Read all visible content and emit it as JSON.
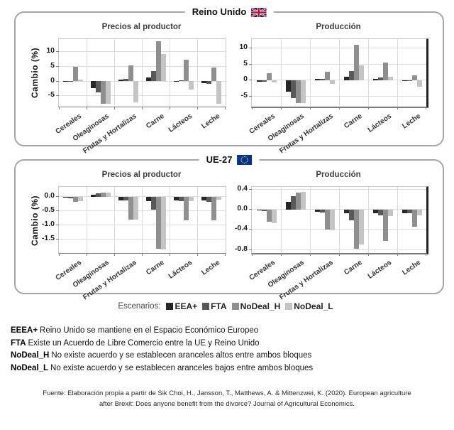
{
  "panels": [
    {
      "title": "Reino Unido",
      "flag": "uk"
    },
    {
      "title": "UE-27",
      "flag": "eu"
    }
  ],
  "legend": {
    "label": "Escenarios:",
    "entries": [
      {
        "name": "EEA+",
        "color": "#262626"
      },
      {
        "name": "FTA",
        "color": "#595959"
      },
      {
        "name": "NoDeal_H",
        "color": "#8f8f8f"
      },
      {
        "name": "NoDeal_L",
        "color": "#c4c4c4"
      }
    ]
  },
  "definitions": [
    {
      "term": "EEEA+",
      "text": "Reino Unido se mantiene en el Espacio Económico Europeo"
    },
    {
      "term": "FTA",
      "text": "Existe un Acuerdo de Libre Comercio entre la UE y Reino Unido"
    },
    {
      "term": "NoDeal_H",
      "text": "No existe acuerdo y se establecen aranceles altos entre ambos bloques"
    },
    {
      "term": "NoDeal_L",
      "text": "No existe acuerdo y se establecen aranceles bajos entre ambos bloques"
    }
  ],
  "source": {
    "line1": "Fuente: Elaboración propia a partir de Sik Choi, H., Jansson, T., Matthews, A. & Mittenzwei, K. (2020). European agriculture",
    "line2": "after Brexit: Does anyone benefit from the divorce? Journal of Agricultural Economics."
  },
  "chart_data": [
    {
      "id": "uk-precios",
      "type": "bar",
      "panel": "Reino Unido",
      "title": "Precios al productor",
      "ylabel": "Cambio (%)",
      "categories": [
        "Cereales",
        "Oleaginosas",
        "Frutas y Hortalizas",
        "Carne",
        "Lácteos",
        "Leche"
      ],
      "series": [
        {
          "name": "EEA+",
          "values": [
            -0.3,
            -2.5,
            0.4,
            1.2,
            -0.2,
            -0.7
          ]
        },
        {
          "name": "FTA",
          "values": [
            -0.3,
            -3.9,
            0.7,
            3.5,
            0.2,
            -0.9
          ]
        },
        {
          "name": "NoDeal_H",
          "values": [
            4.8,
            -7.8,
            5.3,
            13.5,
            7.2,
            4.6
          ]
        },
        {
          "name": "NoDeal_L",
          "values": [
            0.5,
            -7.8,
            -7.2,
            9.2,
            -2.8,
            -7.8
          ]
        }
      ],
      "ylim": [
        -8.7,
        14.3
      ],
      "yticks": [
        {
          "v": 10,
          "label": "10"
        },
        {
          "v": 5,
          "label": "5"
        },
        {
          "v": 0,
          "label": "0"
        },
        {
          "v": -5,
          "label": "-5"
        }
      ],
      "grid": true,
      "legend_position": "bottom-shared"
    },
    {
      "id": "uk-produccion",
      "type": "bar",
      "panel": "Reino Unido",
      "title": "Producción",
      "ylabel": "",
      "categories": [
        "Cereales",
        "Oleaginosas",
        "Frutas y Hortalizas",
        "Carne",
        "Lácteos",
        "Leche"
      ],
      "series": [
        {
          "name": "EEA+",
          "values": [
            -0.5,
            -3.5,
            0.3,
            1.0,
            0.4,
            -0.2
          ]
        },
        {
          "name": "FTA",
          "values": [
            -0.6,
            -5.5,
            0.4,
            2.7,
            0.8,
            -0.3
          ]
        },
        {
          "name": "NoDeal_H",
          "values": [
            2.2,
            -7.0,
            2.6,
            11.0,
            5.5,
            1.5
          ]
        },
        {
          "name": "NoDeal_L",
          "values": [
            -0.8,
            -7.2,
            -1.2,
            4.5,
            1.0,
            -2.0
          ]
        }
      ],
      "ylim": [
        -8.2,
        12.7
      ],
      "yticks": [
        {
          "v": 10,
          "label": "10"
        },
        {
          "v": 5,
          "label": "5"
        },
        {
          "v": 0,
          "label": "0"
        },
        {
          "v": -5,
          "label": "-5"
        }
      ],
      "grid": true,
      "legend_position": "bottom-shared"
    },
    {
      "id": "eu-precios",
      "type": "bar",
      "panel": "UE-27",
      "title": "Precios al productor",
      "ylabel": "Cambio (%)",
      "categories": [
        "Cereales",
        "Oleaginosas",
        "Frutas y Hortalizas",
        "Carne",
        "Lácteos",
        "Leche"
      ],
      "series": [
        {
          "name": "EEA+",
          "values": [
            -0.03,
            0.08,
            -0.12,
            -0.15,
            -0.13,
            -0.12
          ]
        },
        {
          "name": "FTA",
          "values": [
            -0.05,
            0.12,
            -0.14,
            -0.45,
            -0.16,
            -0.17
          ]
        },
        {
          "name": "NoDeal_H",
          "values": [
            -0.17,
            0.15,
            -0.8,
            -1.85,
            -0.85,
            -0.85
          ]
        },
        {
          "name": "NoDeal_L",
          "values": [
            -0.15,
            0.16,
            -0.82,
            -1.87,
            -0.15,
            -0.1
          ]
        }
      ],
      "ylim": [
        -2.0,
        0.35
      ],
      "yticks": [
        {
          "v": 0,
          "label": "0.0"
        },
        {
          "v": -0.5,
          "label": "-0.5"
        },
        {
          "v": -1.0,
          "label": "-1.0"
        },
        {
          "v": -1.5,
          "label": "-1.5"
        }
      ],
      "grid": true,
      "legend_position": "bottom-shared"
    },
    {
      "id": "eu-produccion",
      "type": "bar",
      "panel": "UE-27",
      "title": "Producción",
      "ylabel": "",
      "categories": [
        "Cereales",
        "Oleaginosas",
        "Frutas y Hortalizas",
        "Carne",
        "Lácteos",
        "Leche"
      ],
      "series": [
        {
          "name": "EEA+",
          "values": [
            -0.02,
            0.15,
            -0.05,
            -0.08,
            -0.07,
            -0.07
          ]
        },
        {
          "name": "FTA",
          "values": [
            -0.03,
            0.27,
            -0.06,
            -0.22,
            -0.12,
            -0.08
          ]
        },
        {
          "name": "NoDeal_H",
          "values": [
            -0.25,
            0.33,
            -0.4,
            -0.78,
            -0.63,
            -0.35
          ]
        },
        {
          "name": "NoDeal_L",
          "values": [
            -0.27,
            0.35,
            -0.42,
            -0.7,
            -0.13,
            -0.12
          ]
        }
      ],
      "ylim": [
        -0.87,
        0.45
      ],
      "yticks": [
        {
          "v": 0.4,
          "label": "0.4"
        },
        {
          "v": 0,
          "label": "0.0"
        },
        {
          "v": -0.4,
          "label": "-0.4"
        },
        {
          "v": -0.8,
          "label": "-0.8"
        }
      ],
      "grid": true,
      "legend_position": "bottom-shared"
    }
  ]
}
